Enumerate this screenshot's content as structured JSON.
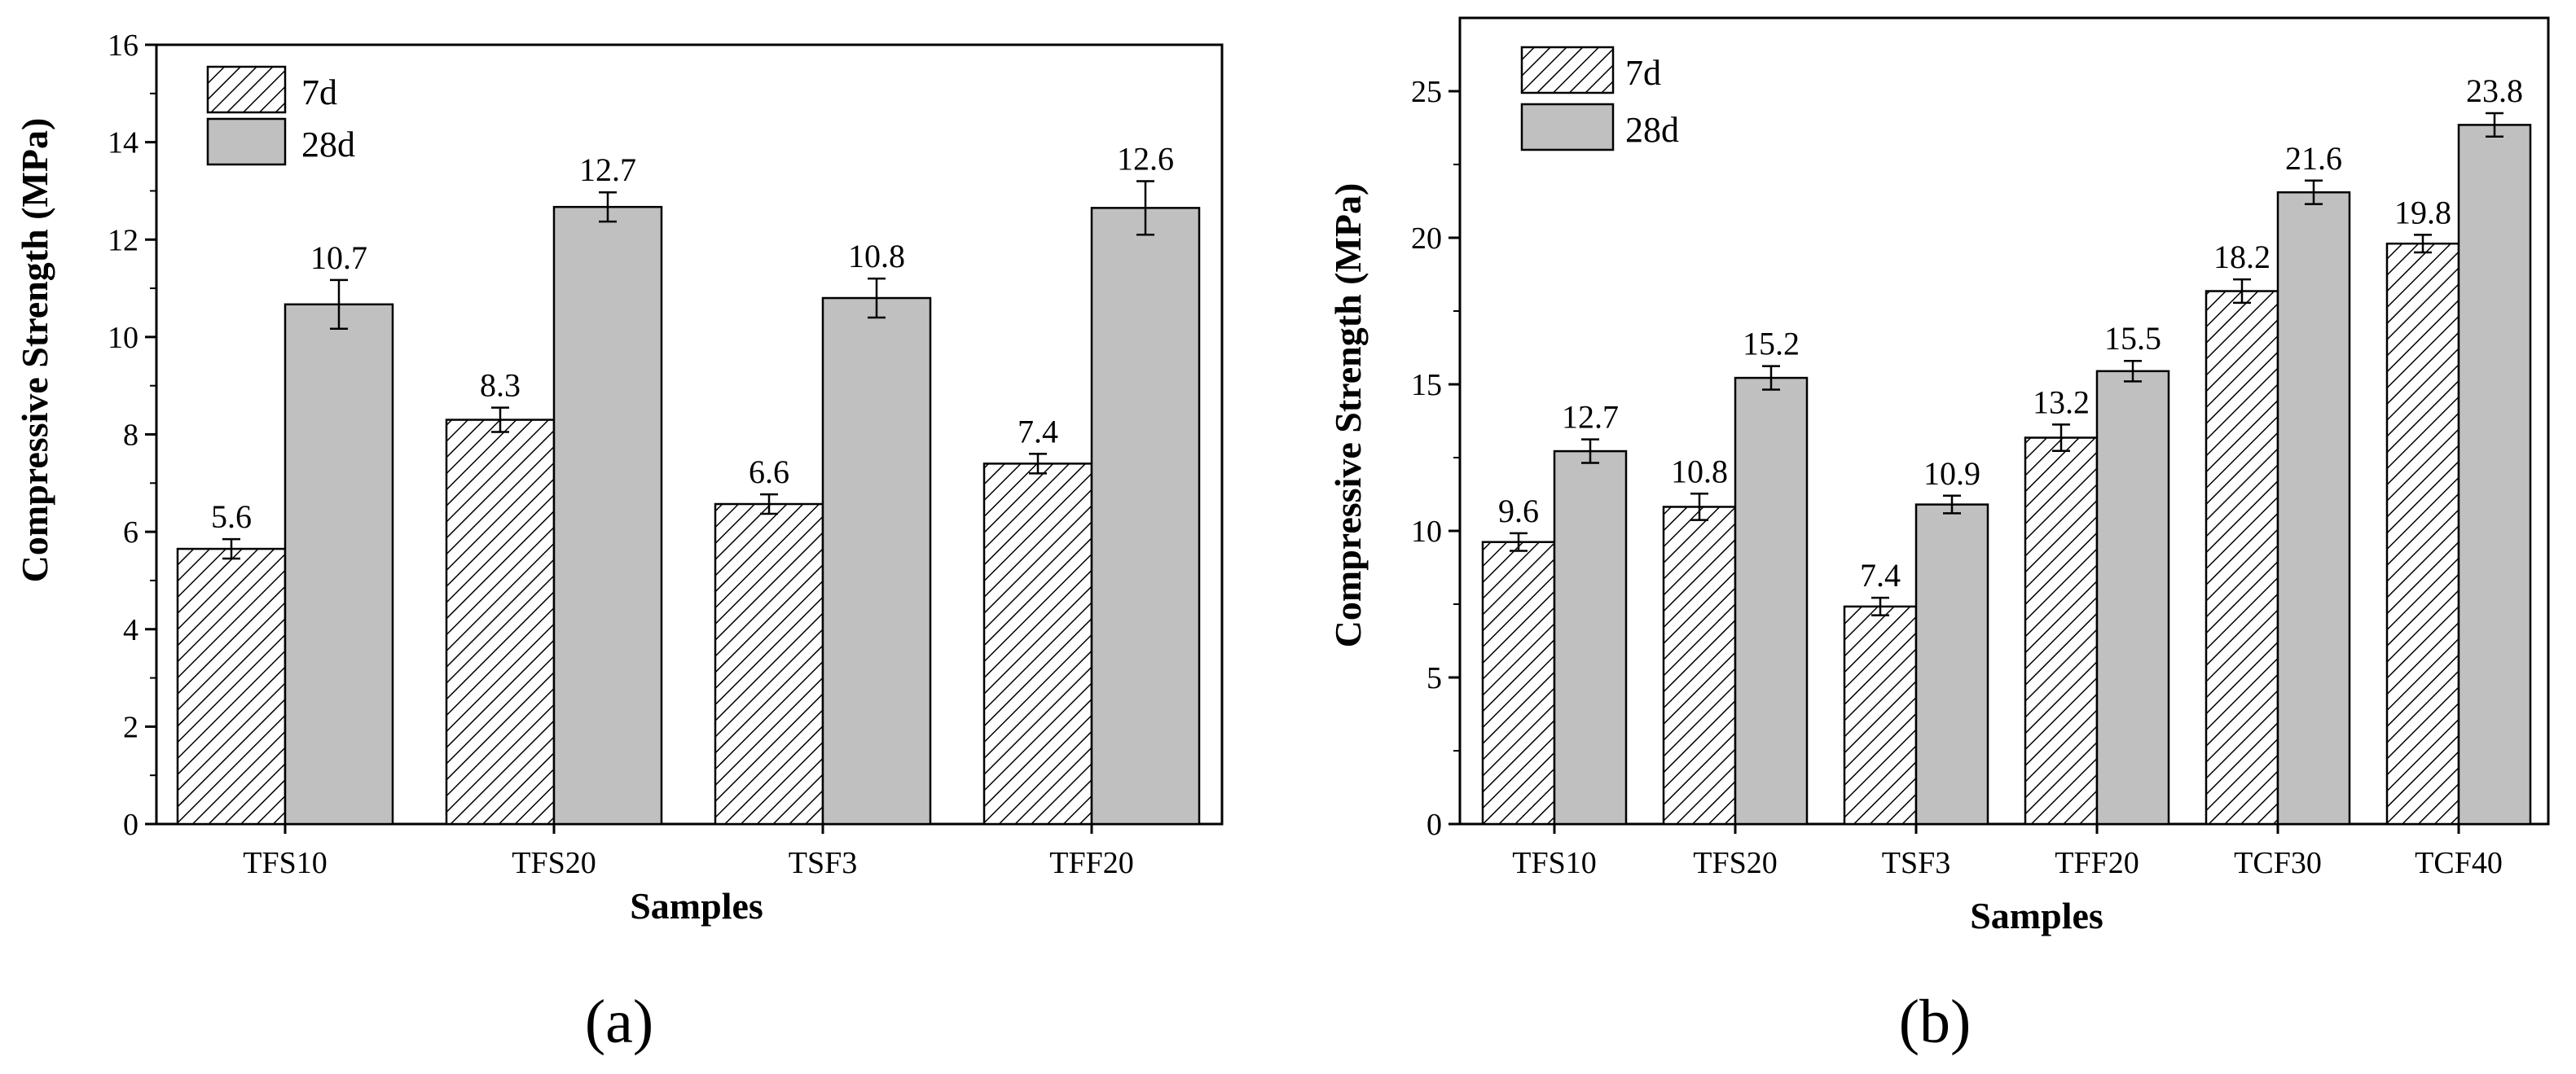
{
  "chart_data": [
    {
      "type": "bar",
      "panel_label": "(a)",
      "xlabel": "Samples",
      "ylabel": "Compressive Strength (MPa)",
      "ylim": [
        0,
        16
      ],
      "yticks": [
        "0",
        "2",
        "4",
        "6",
        "8",
        "10",
        "12",
        "14",
        "16"
      ],
      "categories": [
        "TFS10",
        "TFS20",
        "TSF3",
        "TFF20"
      ],
      "legend_position": "top-left",
      "series": [
        {
          "name": "7d",
          "pattern": "hatched",
          "values": [
            5.65,
            8.3,
            6.57,
            7.4
          ],
          "labels": [
            "5.6",
            "8.3",
            "6.6",
            "7.4"
          ],
          "errors": [
            0.2,
            0.25,
            0.2,
            0.2
          ]
        },
        {
          "name": "28d",
          "pattern": "solid",
          "values": [
            10.67,
            12.67,
            10.8,
            12.65
          ],
          "labels": [
            "10.7",
            "12.7",
            "10.8",
            "12.6"
          ],
          "errors": [
            0.5,
            0.3,
            0.4,
            0.55
          ]
        }
      ],
      "colors": {
        "hatched_fill": "#ffffff",
        "solid_fill": "#c0c0c0",
        "stroke": "#000000"
      }
    },
    {
      "type": "bar",
      "panel_label": "(b)",
      "xlabel": "Samples",
      "ylabel": "Compressive Strength (MPa)",
      "ylim": [
        0,
        27.5
      ],
      "yticks": [
        "0",
        "5",
        "10",
        "15",
        "20",
        "25"
      ],
      "categories": [
        "TFS10",
        "TFS20",
        "TSF3",
        "TFF20",
        "TCF30",
        "TCF40"
      ],
      "legend_position": "top-left",
      "series": [
        {
          "name": "7d",
          "pattern": "hatched",
          "values": [
            9.62,
            10.82,
            7.42,
            13.18,
            18.18,
            19.8
          ],
          "labels": [
            "9.6",
            "10.8",
            "7.4",
            "13.2",
            "18.2",
            "19.8"
          ],
          "errors": [
            0.3,
            0.45,
            0.3,
            0.45,
            0.4,
            0.3
          ]
        },
        {
          "name": "28d",
          "pattern": "solid",
          "values": [
            12.72,
            15.22,
            10.9,
            15.45,
            21.55,
            23.85
          ],
          "labels": [
            "12.7",
            "15.2",
            "10.9",
            "15.5",
            "21.6",
            "23.8"
          ],
          "errors": [
            0.4,
            0.4,
            0.3,
            0.35,
            0.4,
            0.4
          ]
        }
      ],
      "colors": {
        "hatched_fill": "#ffffff",
        "solid_fill": "#c0c0c0",
        "stroke": "#000000"
      }
    }
  ]
}
